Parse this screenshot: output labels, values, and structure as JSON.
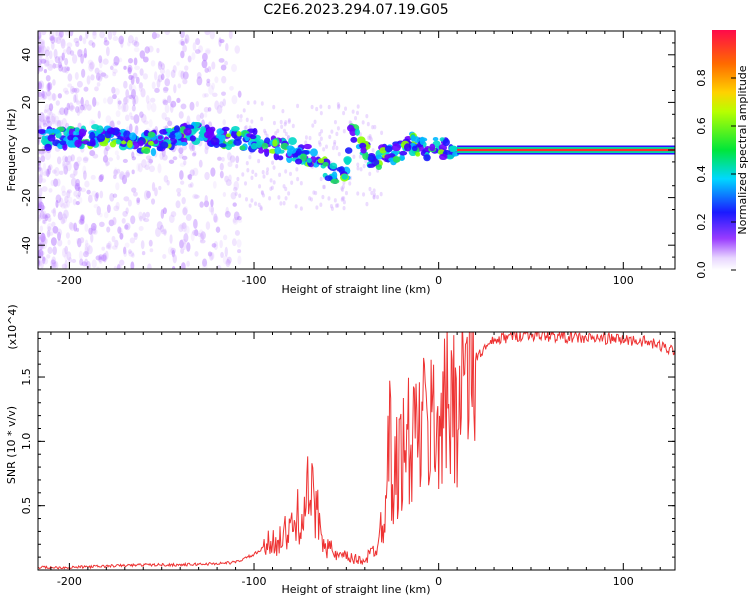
{
  "title": "C2E6.2023.294.07.19.G05",
  "colors": {
    "snr_line": "#ee3333",
    "spectrum_ridge": "#ff2a2a",
    "axis": "#000000"
  },
  "chart_data": [
    {
      "type": "heatmap",
      "title": "C2E6.2023.294.07.19.G05",
      "xlabel": "Height of straight line (km)",
      "ylabel": "Frequency (Hz)",
      "xlim": [
        -217,
        128
      ],
      "ylim": [
        -50,
        50
      ],
      "x_ticks": [
        -200,
        -100,
        0,
        100
      ],
      "x_tick_labels": [
        "-200",
        "-100",
        "0",
        "100"
      ],
      "y_ticks": [
        -40,
        -20,
        0,
        20,
        40
      ],
      "y_tick_labels": [
        "-40",
        "-20",
        "0",
        "20",
        "40"
      ],
      "colorbar": {
        "label": "Normalized spectral amplitude",
        "range": [
          0,
          1
        ],
        "ticks": [
          0.0,
          0.2,
          0.4,
          0.6,
          0.8
        ],
        "tick_labels": [
          "0.0",
          "0.2",
          "0.4",
          "0.6",
          "0.8"
        ]
      },
      "ridge": {
        "x": [
          -215,
          -200,
          -185,
          -170,
          -155,
          -140,
          -130,
          -120,
          -110,
          -100,
          -90,
          -80,
          -70,
          -60,
          -55,
          -50,
          -48,
          -45,
          -40,
          -35,
          -30,
          -25,
          -20,
          -15,
          -10,
          -5,
          0,
          5,
          10,
          20,
          40,
          60,
          80,
          100,
          120,
          128
        ],
        "y": [
          5,
          5,
          6,
          4,
          3,
          6,
          7,
          6,
          5,
          4,
          1,
          0,
          -2,
          -8,
          -12,
          -10,
          8,
          6,
          2,
          -8,
          0,
          -2,
          0,
          3,
          1,
          0,
          2,
          0,
          0,
          0,
          0,
          0,
          0,
          0,
          0,
          0
        ]
      }
    },
    {
      "type": "line",
      "xlabel": "Height of straight line (km)",
      "ylabel": "SNR (10 * v/v)",
      "y_multiplier": "(x10^4)",
      "xlim": [
        -217,
        128
      ],
      "ylim": [
        0,
        1.85
      ],
      "x_ticks": [
        -200,
        -100,
        0,
        100
      ],
      "x_tick_labels": [
        "-200",
        "-100",
        "0",
        "100"
      ],
      "y_ticks": [
        0.5,
        1.0,
        1.5
      ],
      "y_tick_labels": [
        "0.5",
        "1.0",
        "1.5"
      ],
      "series": [
        {
          "x": [
            -217,
            -200,
            -180,
            -160,
            -140,
            -120,
            -110,
            -100,
            -90,
            -80,
            -75,
            -70,
            -65,
            -60,
            -55,
            -50,
            -45,
            -40,
            -35,
            -30,
            -27,
            -25,
            -20,
            -15,
            -10,
            -5,
            0,
            5,
            10,
            15,
            20,
            25,
            30,
            40,
            50,
            60,
            70,
            80,
            90,
            100,
            110,
            115,
            120,
            125,
            128
          ],
          "y": [
            0.02,
            0.02,
            0.03,
            0.04,
            0.04,
            0.05,
            0.06,
            0.12,
            0.22,
            0.3,
            0.45,
            0.6,
            0.4,
            0.18,
            0.1,
            0.1,
            0.08,
            0.08,
            0.15,
            0.4,
            1.1,
            0.7,
            0.9,
            1.0,
            1.1,
            1.1,
            1.2,
            1.25,
            1.4,
            1.5,
            1.65,
            1.72,
            1.78,
            1.82,
            1.83,
            1.82,
            1.81,
            1.8,
            1.8,
            1.79,
            1.78,
            1.76,
            1.74,
            1.72,
            1.71
          ]
        }
      ]
    }
  ]
}
